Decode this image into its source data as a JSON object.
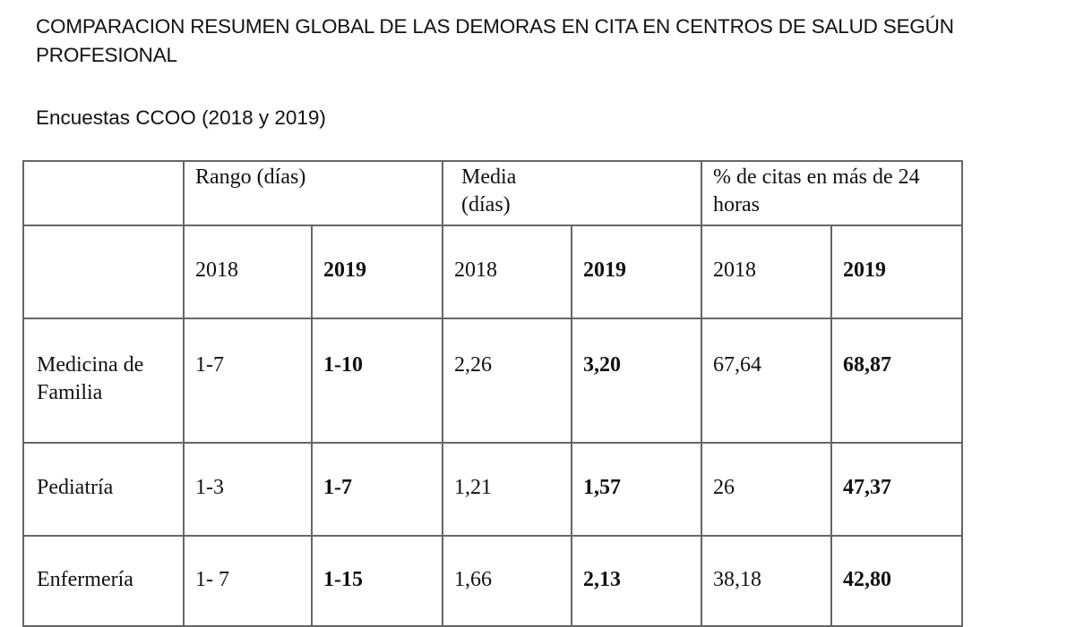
{
  "document": {
    "title": "COMPARACION RESUMEN GLOBAL DE LAS DEMORAS  EN CITA EN CENTROS DE SALUD SEGÚN PROFESIONAL",
    "subtitle": "Encuestas CCOO (2018 y 2019)"
  },
  "table": {
    "group_headers": [
      "Rango (días)",
      "Media (días)",
      "% de citas en más de 24 horas"
    ],
    "year_headers": [
      "2018",
      "2019",
      "2018",
      "2019",
      "2018",
      "2019"
    ],
    "rows": [
      {
        "label": "Medicina de Familia",
        "values": [
          "1-7",
          "1-10",
          "2,26",
          "3,20",
          "67,64",
          "68,87"
        ]
      },
      {
        "label": "Pediatría",
        "values": [
          "1-3",
          "1-7",
          "1,21",
          "1,57",
          "26",
          "47,37"
        ]
      },
      {
        "label": "Enfermería",
        "values": [
          "1- 7",
          "1-15",
          "1,66",
          "2,13",
          "38,18",
          "42,80"
        ]
      }
    ]
  }
}
